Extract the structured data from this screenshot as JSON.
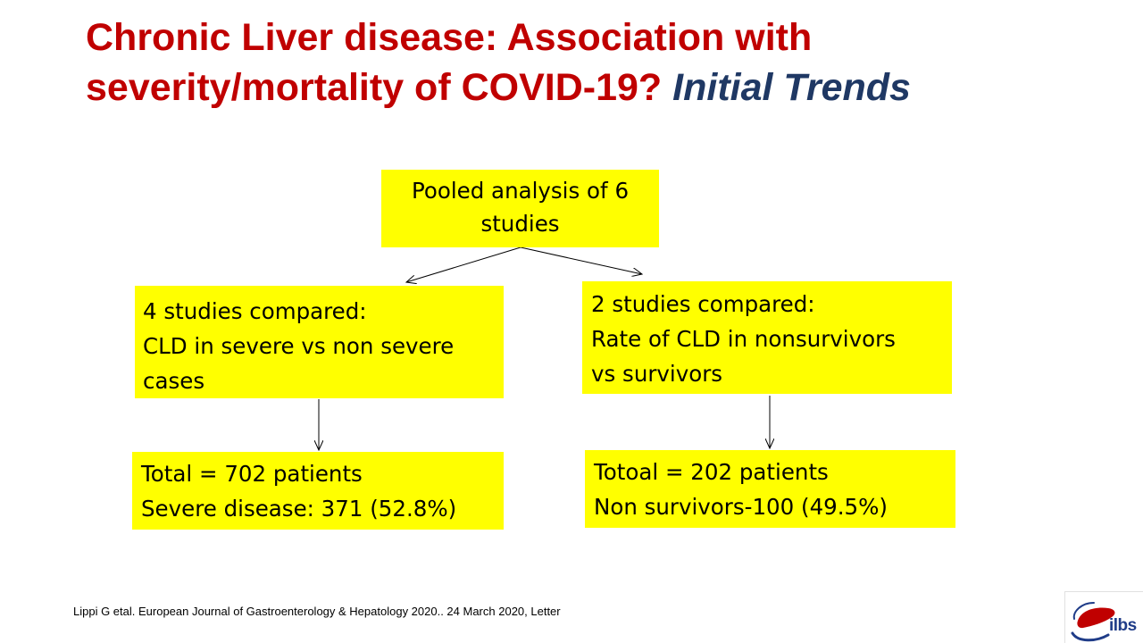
{
  "title": {
    "main": "Chronic Liver disease: Association with severity/mortality of COVID-19?",
    "accent": "Initial Trends"
  },
  "flow": {
    "root": {
      "lines": [
        "Pooled analysis of 6",
        "studies"
      ]
    },
    "left": {
      "lines": [
        "4 studies compared:",
        "CLD in severe vs non severe",
        "cases"
      ],
      "result": [
        "Total = 702 patients",
        "Severe disease: 371 (52.8%)"
      ]
    },
    "right": {
      "lines": [
        "2 studies compared:",
        "Rate of CLD in  nonsurvivors",
        "vs survivors"
      ],
      "result": [
        "Totoal = 202 patients",
        "Non survivors-100 (49.5%)"
      ]
    }
  },
  "citation": "Lippi G etal. European Journal of Gastroenterology & Hepatology 2020.. 24 March 2020, Letter",
  "logo": {
    "text": "ilbs",
    "colors": {
      "liver": "#c00000",
      "ring": "#1f3c88"
    }
  },
  "colors": {
    "title": "#c00000",
    "accent": "#1f3864",
    "box_fill": "#ffff00"
  }
}
